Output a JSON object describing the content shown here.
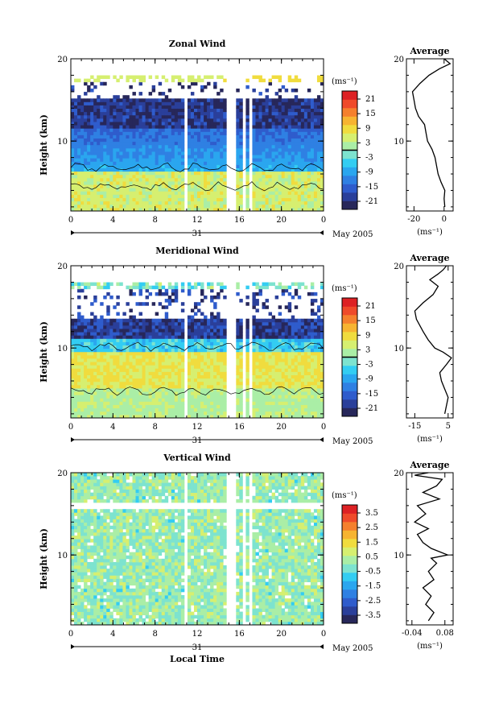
{
  "figure": {
    "x_axis_label": "Local Time",
    "date_label": "May 2005",
    "date_tick": "31",
    "colorbar_unit": "(ms⁻¹)",
    "profile_unit": "(ms⁻¹)",
    "average_title": "Average",
    "y_label": "Height (km)"
  },
  "palette": [
    "#27275a",
    "#2a3f9a",
    "#2f5ccc",
    "#2f80e3",
    "#2aa6ef",
    "#33cdf2",
    "#7de3cf",
    "#aaeea6",
    "#d6ef70",
    "#f0dc3e",
    "#f7b431",
    "#f5802d",
    "#ef4a2a",
    "#dd2124"
  ],
  "chart_data": [
    {
      "type": "heatmap",
      "title": "Zonal Wind",
      "xlabel": "",
      "ylabel": "Height (km)",
      "x_ticks": [
        "0",
        "4",
        "8",
        "12",
        "16",
        "20",
        "0"
      ],
      "y_ticks": [
        "20",
        "10"
      ],
      "ylim": [
        1.5,
        20
      ],
      "colorbar_ticks": [
        "21",
        "15",
        "9",
        "3",
        "-3",
        "-9",
        "-15",
        "-21"
      ],
      "colorbar_range": [
        -24,
        24
      ],
      "gaps_local_hour": [
        [
          10.5,
          10.8
        ],
        [
          14.5,
          15.6
        ],
        [
          16.3,
          16.5
        ],
        [
          16.9,
          17.1
        ]
      ],
      "profile_values": [
        [
          0.5,
          2
        ],
        [
          0,
          3
        ],
        [
          0.5,
          4
        ],
        [
          -2,
          5
        ],
        [
          -4,
          6
        ],
        [
          -5,
          7
        ],
        [
          -6,
          8
        ],
        [
          -8,
          9
        ],
        [
          -11,
          10
        ],
        [
          -12,
          11
        ],
        [
          -13,
          12
        ],
        [
          -17,
          13
        ],
        [
          -19,
          14
        ],
        [
          -20,
          15
        ],
        [
          -21,
          16
        ],
        [
          -16,
          17
        ],
        [
          -10,
          18
        ],
        [
          -3,
          18.8
        ],
        [
          4,
          19.4
        ],
        [
          0,
          20
        ]
      ],
      "profile_xticks": [
        "-20",
        "0"
      ],
      "profile_xlim": [
        -25,
        6
      ]
    },
    {
      "type": "heatmap",
      "title": "Meridional Wind",
      "xlabel": "",
      "ylabel": "Height (km)",
      "x_ticks": [
        "0",
        "4",
        "8",
        "12",
        "16",
        "20",
        "0"
      ],
      "y_ticks": [
        "20",
        "10"
      ],
      "ylim": [
        1.5,
        20
      ],
      "colorbar_ticks": [
        "21",
        "15",
        "9",
        "3",
        "-3",
        "-9",
        "-15",
        "-21"
      ],
      "colorbar_range": [
        -24,
        24
      ],
      "gaps_local_hour": [
        [
          10.5,
          10.8
        ],
        [
          14.5,
          15.6
        ],
        [
          16.3,
          16.5
        ],
        [
          16.9,
          17.1
        ]
      ],
      "profile_values": [
        [
          3,
          2
        ],
        [
          4,
          3
        ],
        [
          5,
          4
        ],
        [
          3,
          5
        ],
        [
          1,
          6
        ],
        [
          0,
          7
        ],
        [
          4,
          8
        ],
        [
          7,
          8.8
        ],
        [
          2,
          9.5
        ],
        [
          -3,
          10
        ],
        [
          -7,
          11
        ],
        [
          -10,
          12
        ],
        [
          -14,
          13.5
        ],
        [
          -15,
          14.5
        ],
        [
          -10,
          15.5
        ],
        [
          -4,
          16.5
        ],
        [
          -1,
          17.5
        ],
        [
          -6,
          18.3
        ],
        [
          -1,
          19
        ],
        [
          2,
          19.5
        ],
        [
          4,
          20
        ]
      ],
      "profile_xticks": [
        "-15",
        "5"
      ],
      "profile_xlim": [
        -20,
        8
      ]
    },
    {
      "type": "heatmap",
      "title": "Vertical Wind",
      "xlabel": "Local Time",
      "ylabel": "Height (km)",
      "x_ticks": [
        "0",
        "4",
        "8",
        "12",
        "16",
        "20",
        "0"
      ],
      "y_ticks": [
        "20",
        "10"
      ],
      "ylim": [
        1.5,
        20
      ],
      "colorbar_ticks": [
        "3.5",
        "2.5",
        "1.5",
        "0.5",
        "-0.5",
        "-1.5",
        "-2.5",
        "-3.5"
      ],
      "colorbar_range": [
        -4,
        4
      ],
      "gaps_local_hour": [
        [
          10.5,
          10.8
        ],
        [
          14.5,
          15.6
        ],
        [
          16.3,
          16.5
        ],
        [
          16.9,
          17.1
        ]
      ],
      "profile_values": [
        [
          0.02,
          2
        ],
        [
          0.04,
          3
        ],
        [
          0.01,
          4
        ],
        [
          0.03,
          5
        ],
        [
          0.0,
          6
        ],
        [
          0.04,
          7
        ],
        [
          0.02,
          8
        ],
        [
          0.05,
          9
        ],
        [
          0.03,
          9.6
        ],
        [
          0.09,
          10
        ],
        [
          0.03,
          10.8
        ],
        [
          0.0,
          11.5
        ],
        [
          -0.02,
          12.5
        ],
        [
          0.02,
          13.2
        ],
        [
          -0.03,
          14
        ],
        [
          0.01,
          15
        ],
        [
          -0.02,
          16
        ],
        [
          0.06,
          16.8
        ],
        [
          0.0,
          17.6
        ],
        [
          0.05,
          18.4
        ],
        [
          0.07,
          19.2
        ],
        [
          -0.03,
          19.7
        ],
        [
          0.02,
          20
        ]
      ],
      "profile_xticks": [
        "-0.04",
        "0.08"
      ],
      "profile_xlim": [
        -0.06,
        0.11
      ]
    }
  ]
}
